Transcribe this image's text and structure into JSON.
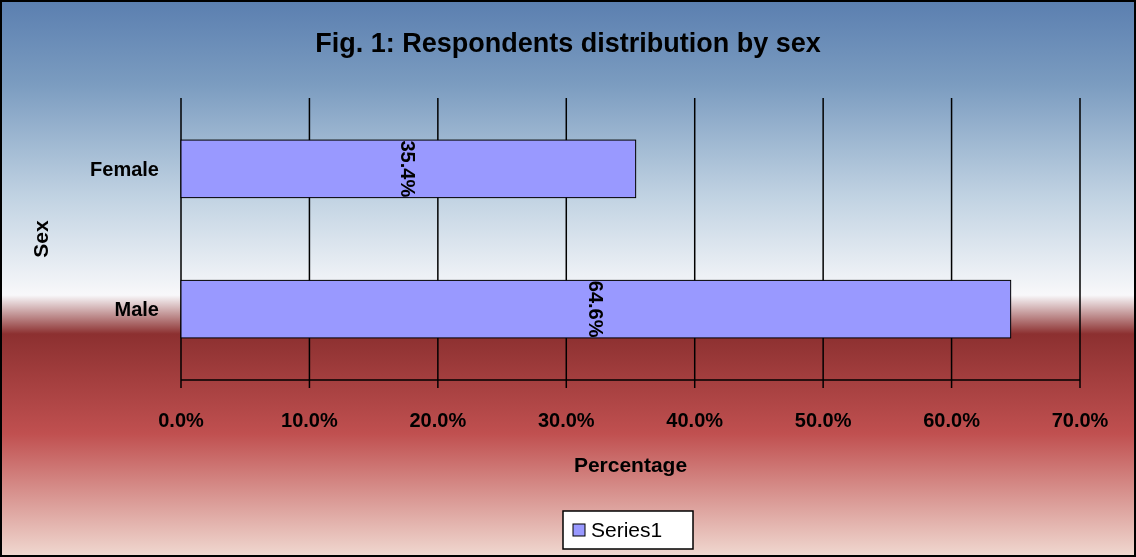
{
  "chart_data": {
    "type": "bar",
    "orientation": "horizontal",
    "title": "Fig. 1: Respondents distribution by sex",
    "xlabel": "Percentage",
    "ylabel": "Sex",
    "categories": [
      "Female",
      "Male"
    ],
    "series": [
      {
        "name": "Series1",
        "color": "#9999ff",
        "values": [
          35.4,
          64.6
        ],
        "value_labels": [
          "35.4%",
          "64.6%"
        ]
      }
    ],
    "xlim": [
      0,
      70
    ],
    "xticks": [
      {
        "value": 0,
        "label": "0.0%"
      },
      {
        "value": 10,
        "label": "10.0%"
      },
      {
        "value": 20,
        "label": "20.0%"
      },
      {
        "value": 30,
        "label": "30.0%"
      },
      {
        "value": 40,
        "label": "40.0%"
      },
      {
        "value": 50,
        "label": "50.0%"
      },
      {
        "value": 60,
        "label": "60.0%"
      },
      {
        "value": 70,
        "label": "70.0%"
      }
    ],
    "grid": "x",
    "legend": "bottom"
  }
}
